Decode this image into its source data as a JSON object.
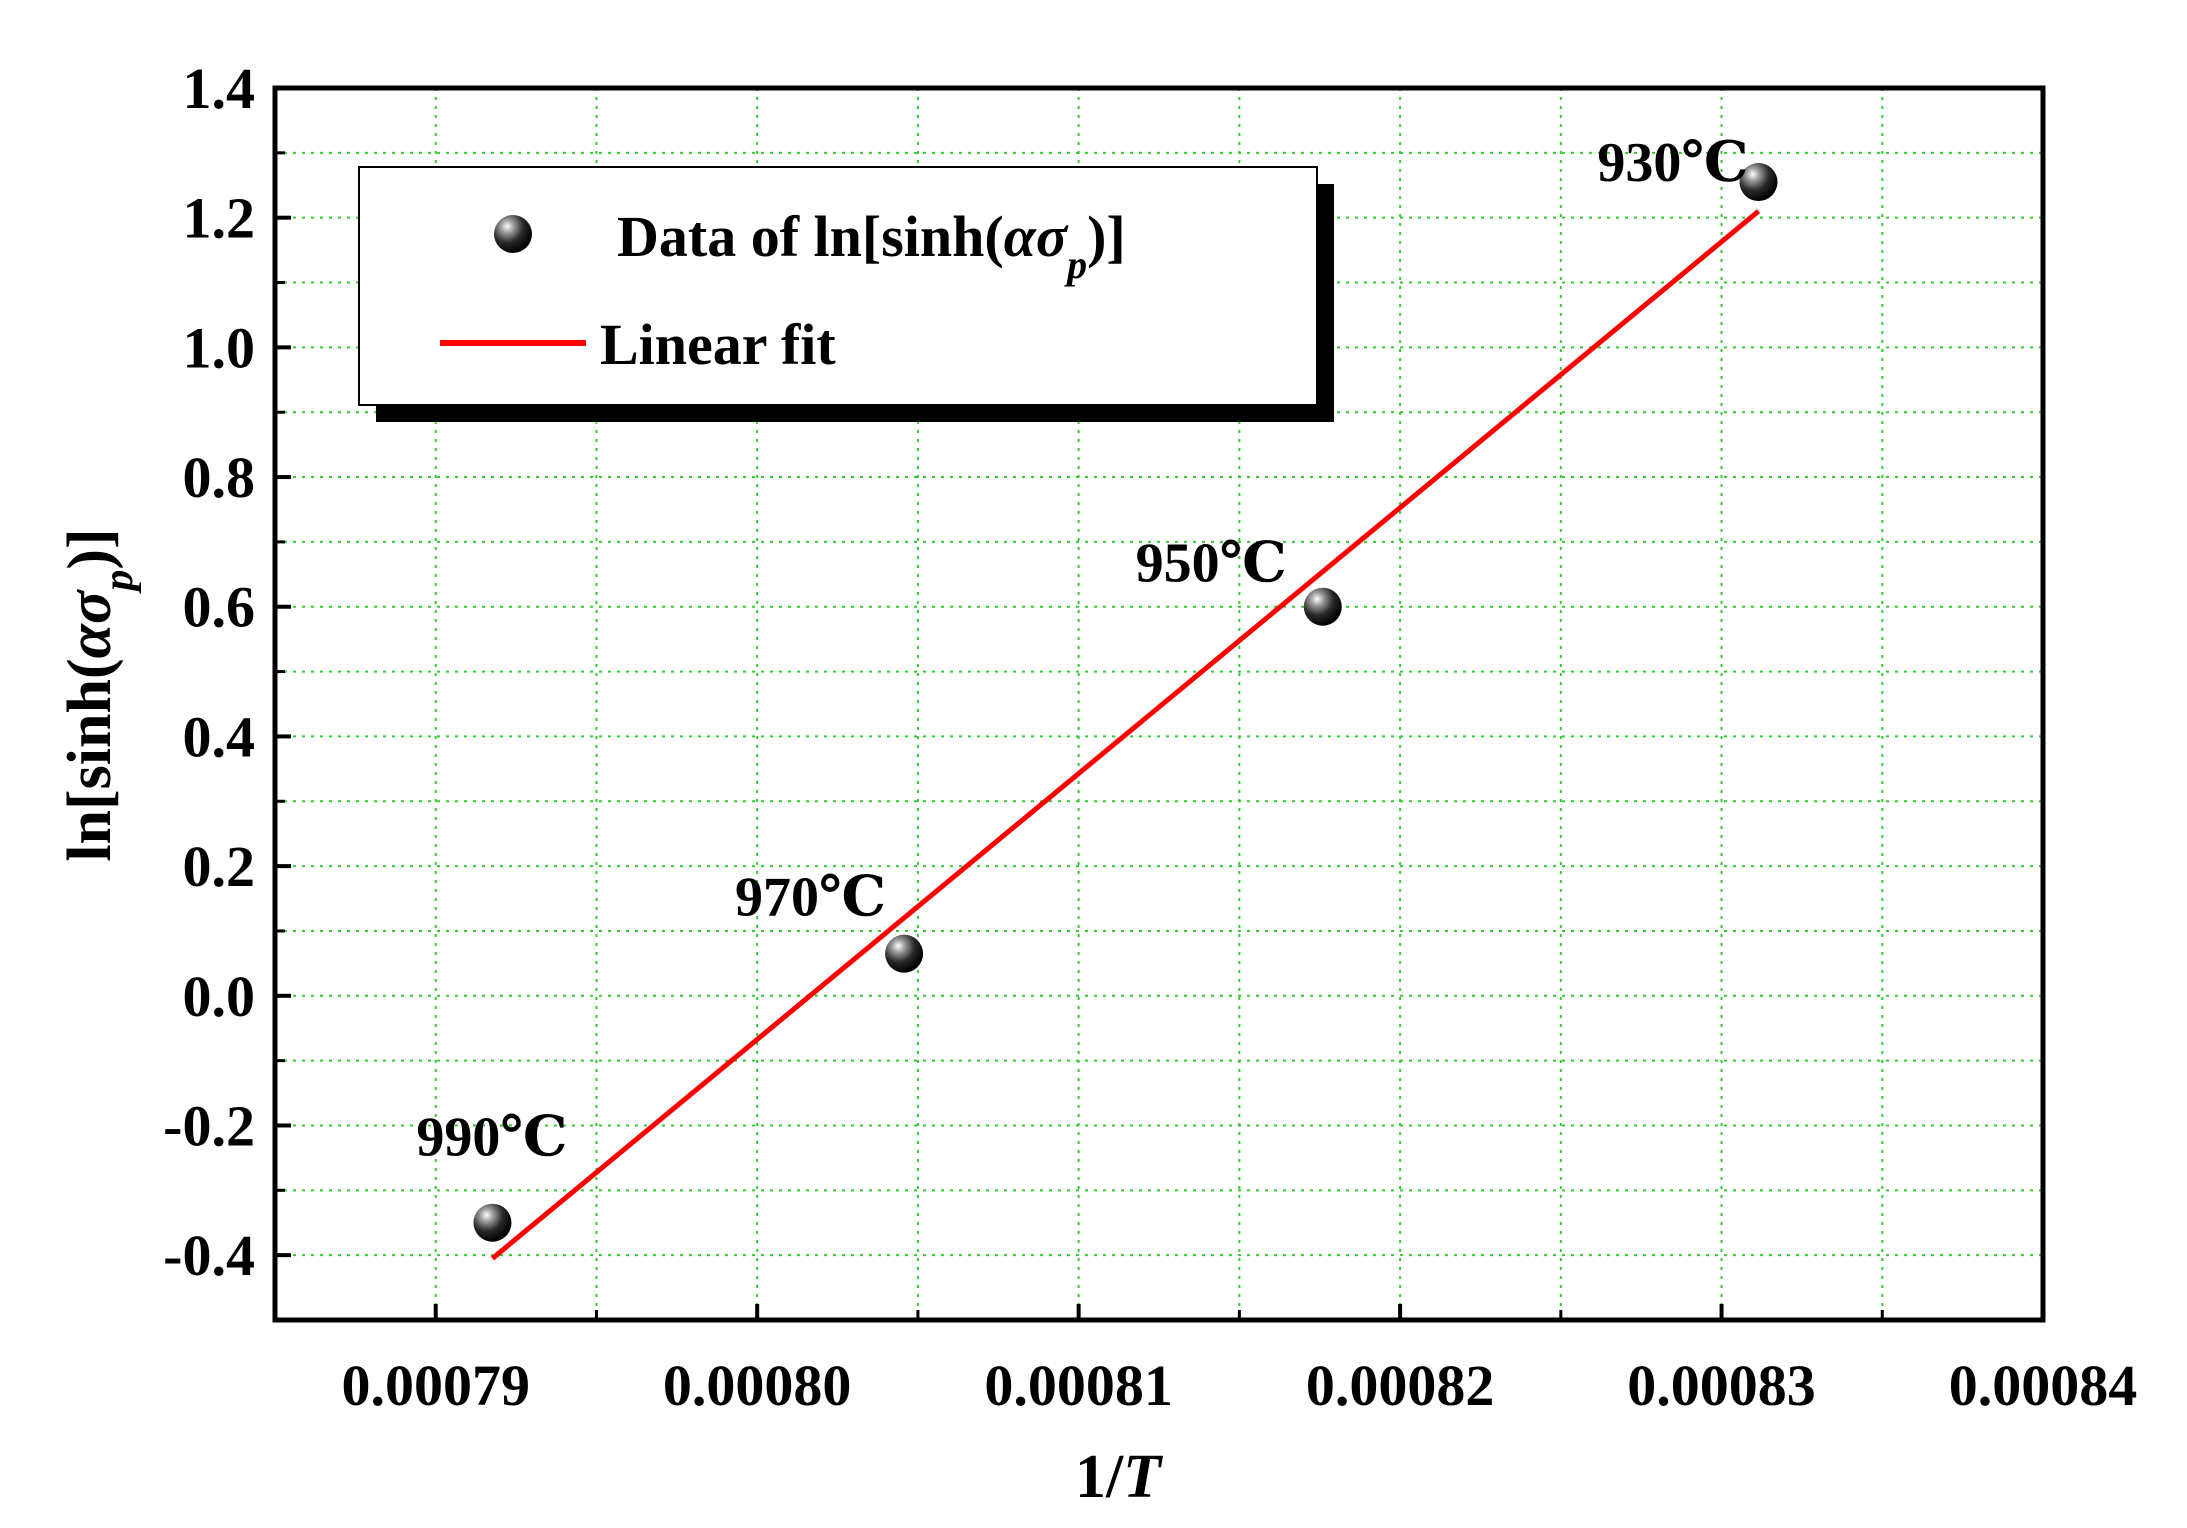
{
  "chart_data": {
    "type": "scatter",
    "xlabel_main": "1/",
    "xlabel_var": "T",
    "ylabel_prefix": "ln[sinh(",
    "ylabel_alpha": "α",
    "ylabel_sigma": "σ",
    "ylabel_sub": "p",
    "ylabel_suffix": ")]",
    "xlim": [
      0.000785,
      0.00084
    ],
    "ylim": [
      -0.5,
      1.4
    ],
    "x_ticks": [
      "0.00079",
      "0.00080",
      "0.00081",
      "0.00082",
      "0.00083",
      "0.00084"
    ],
    "x_tick_values": [
      0.00079,
      0.0008,
      0.00081,
      0.00082,
      0.00083,
      0.00084
    ],
    "y_ticks": [
      "-0.4",
      "-0.2",
      "0.0",
      "0.2",
      "0.4",
      "0.6",
      "0.8",
      "1.0",
      "1.2",
      "1.4"
    ],
    "y_tick_values": [
      -0.4,
      -0.2,
      0.0,
      0.2,
      0.4,
      0.6,
      0.8,
      1.0,
      1.2,
      1.4
    ],
    "grid": true,
    "legend": {
      "position": "top-left",
      "scatter_prefix": "Data of ln[sinh(",
      "scatter_alpha": "α",
      "scatter_sigma": "σ",
      "scatter_sub": "p",
      "scatter_suffix": ")]",
      "line_label": "Linear fit"
    },
    "series": [
      {
        "kind": "scatter",
        "points": [
          {
            "x": 0.000791765,
            "y": -0.35,
            "label": "990℃"
          },
          {
            "x": 0.00080457,
            "y": 0.065,
            "label": "970℃"
          },
          {
            "x": 0.000817595,
            "y": 0.6,
            "label": "950℃"
          },
          {
            "x": 0.00083115,
            "y": 1.255,
            "label": "930℃"
          }
        ]
      },
      {
        "kind": "line",
        "color": "#ff0000",
        "points": [
          {
            "x": 0.000791765,
            "y": -0.405
          },
          {
            "x": 0.00083115,
            "y": 1.21
          }
        ]
      }
    ]
  }
}
